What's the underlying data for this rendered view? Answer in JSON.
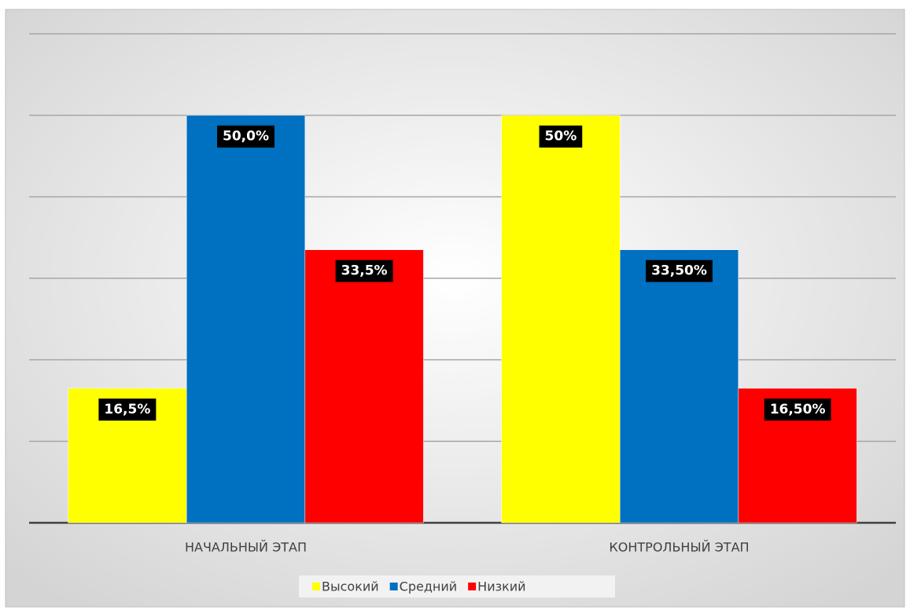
{
  "chart_data": {
    "type": "bar",
    "categories": [
      "НАЧАЛЬНЫЙ ЭТАП",
      "КОНТРОЛЬНЫЙ ЭТАП"
    ],
    "series": [
      {
        "name": "Высокий",
        "color": "#ffff00",
        "values": [
          16.5,
          50
        ],
        "value_labels": [
          "16,5%",
          "50%"
        ]
      },
      {
        "name": "Средний",
        "color": "#0070c0",
        "values": [
          50,
          33.5
        ],
        "value_labels": [
          "50,0%",
          "33,50%"
        ]
      },
      {
        "name": "Низкий",
        "color": "#ff0000",
        "values": [
          33.5,
          16.5
        ],
        "value_labels": [
          "33,5%",
          "16,50%"
        ]
      }
    ],
    "ylim": [
      0,
      60
    ],
    "yticks": [
      0,
      10,
      20,
      30,
      40,
      50,
      60
    ],
    "grid": true,
    "legend": "bottom"
  }
}
